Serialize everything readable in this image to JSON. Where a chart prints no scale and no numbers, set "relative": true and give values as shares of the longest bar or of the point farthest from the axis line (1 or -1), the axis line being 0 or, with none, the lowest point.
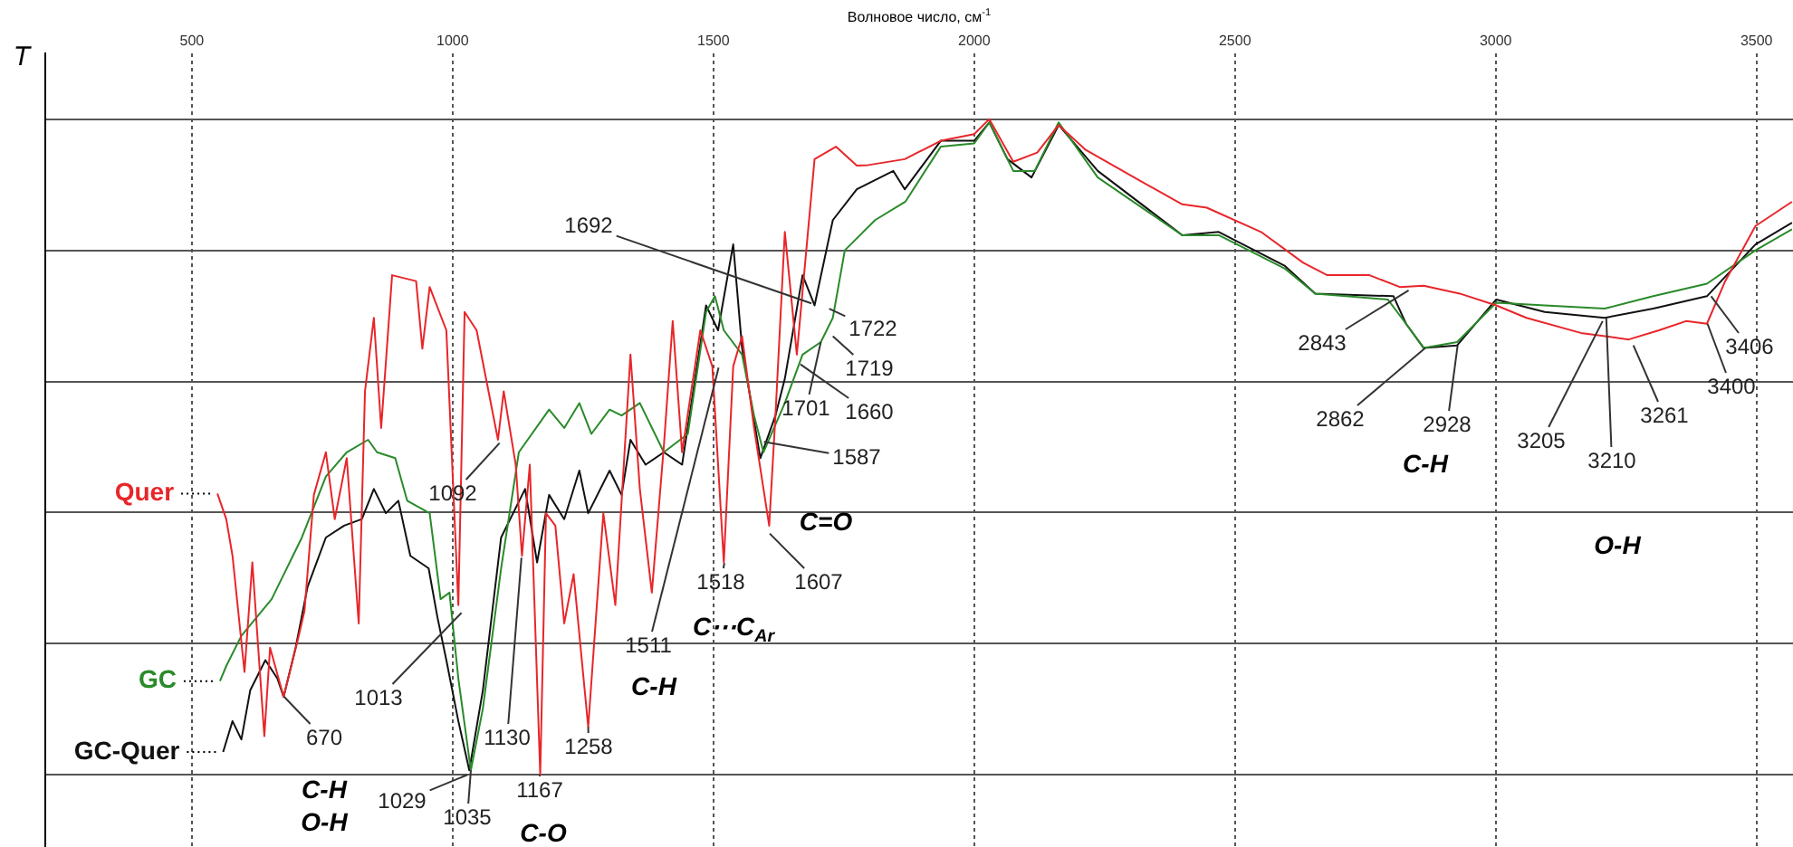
{
  "chart_data": {
    "type": "line",
    "relative": true,
    "xlabel": "Волновое число, см$^{-1}$",
    "ylabel": "T",
    "xlim": [
      219,
      3570
    ],
    "xticks": [
      500,
      1000,
      1500,
      2000,
      2500,
      3000,
      3500
    ],
    "grid": true,
    "legend": false,
    "marker": "none",
    "line_style": "solid",
    "series": [
      {
        "name": "Quer",
        "color": "#e8262a",
        "x": [
          549,
          566,
          578,
          601,
          616,
          639,
          650,
          676,
          705,
          716,
          734,
          757,
          774,
          797,
          820,
          832,
          849,
          863,
          884,
          930,
          942,
          956,
          988,
          1011,
          1023,
          1046,
          1087,
          1098,
          1121,
          1133,
          1148,
          1168,
          1179,
          1197,
          1214,
          1232,
          1260,
          1289,
          1312,
          1341,
          1359,
          1382,
          1405,
          1422,
          1440,
          1475,
          1498,
          1520,
          1538,
          1555,
          1578,
          1607,
          1619,
          1637,
          1660,
          1694,
          1735,
          1775,
          1797,
          1867,
          1936,
          2000,
          2029,
          2075,
          2121,
          2162,
          2214,
          2307,
          2399,
          2446,
          2550,
          2631,
          2677,
          2758,
          2816,
          2862,
          2931,
          3001,
          3059,
          3163,
          3255,
          3313,
          3365,
          3405,
          3440,
          3498,
          3568
        ],
        "values": [
          0.429,
          0.39,
          0.334,
          0.157,
          0.324,
          0.059,
          0.194,
          0.119,
          0.212,
          0.25,
          0.427,
          0.492,
          0.39,
          0.483,
          0.231,
          0.585,
          0.697,
          0.529,
          0.762,
          0.753,
          0.65,
          0.744,
          0.678,
          0.259,
          0.706,
          0.678,
          0.511,
          0.585,
          0.473,
          0.334,
          0.473,
          0,
          0.399,
          0.38,
          0.231,
          0.306,
          0.073,
          0.399,
          0.259,
          0.641,
          0.436,
          0.278,
          0.501,
          0.692,
          0.492,
          0.678,
          0.623,
          0.324,
          0.623,
          0.669,
          0.529,
          0.38,
          0.548,
          0.828,
          0.641,
          0.939,
          0.958,
          0.929,
          0.93,
          0.939,
          0.967,
          0.977,
          1,
          0.935,
          0.949,
          0.991,
          0.953,
          0.911,
          0.87,
          0.865,
          0.828,
          0.781,
          0.762,
          0.762,
          0.744,
          0.746,
          0.734,
          0.716,
          0.697,
          0.674,
          0.664,
          0.678,
          0.692,
          0.688,
          0.753,
          0.837,
          0.874
        ]
      },
      {
        "name": "GC",
        "color": "#2a8a2a",
        "x": [
          554,
          566,
          595,
          653,
          711,
          757,
          797,
          838,
          855,
          890,
          913,
          956,
          977,
          994,
          1011,
          1035,
          1058,
          1093,
          1127,
          1185,
          1214,
          1243,
          1266,
          1301,
          1324,
          1359,
          1405,
          1451,
          1486,
          1503,
          1520,
          1555,
          1578,
          1596,
          1637,
          1671,
          1706,
          1729,
          1752,
          1810,
          1868,
          1936,
          2000,
          2029,
          2075,
          2116,
          2162,
          2237,
          2399,
          2469,
          2596,
          2654,
          2793,
          2828,
          2862,
          2926,
          3001,
          3094,
          3209,
          3302,
          3405,
          3498,
          3568
        ],
        "values": [
          0.143,
          0.166,
          0.212,
          0.268,
          0.362,
          0.455,
          0.492,
          0.511,
          0.492,
          0.483,
          0.418,
          0.399,
          0.268,
          0.278,
          0.147,
          0.007,
          0.101,
          0.315,
          0.492,
          0.557,
          0.529,
          0.567,
          0.52,
          0.557,
          0.548,
          0.567,
          0.492,
          0.52,
          0.706,
          0.73,
          0.678,
          0.641,
          0.548,
          0.492,
          0.567,
          0.641,
          0.66,
          0.697,
          0.8,
          0.846,
          0.874,
          0.958,
          0.963,
          0.995,
          0.921,
          0.921,
          0.995,
          0.911,
          0.823,
          0.823,
          0.772,
          0.734,
          0.725,
          0.688,
          0.651,
          0.66,
          0.72,
          0.716,
          0.711,
          0.73,
          0.749,
          0.8,
          0.832
        ]
      },
      {
        "name": "GC-Quer",
        "color": "#111111",
        "x": [
          560,
          578,
          595,
          612,
          641,
          664,
          676,
          699,
          722,
          757,
          792,
          826,
          849,
          872,
          896,
          919,
          954,
          971,
          988,
          1011,
          1032,
          1058,
          1093,
          1139,
          1162,
          1185,
          1214,
          1243,
          1260,
          1301,
          1324,
          1341,
          1370,
          1405,
          1440,
          1463,
          1486,
          1509,
          1538,
          1555,
          1590,
          1619,
          1637,
          1671,
          1694,
          1729,
          1775,
          1845,
          1867,
          1936,
          2000,
          2029,
          2064,
          2110,
          2162,
          2237,
          2399,
          2469,
          2596,
          2654,
          2804,
          2828,
          2862,
          2926,
          3001,
          3094,
          3209,
          3302,
          3405,
          3498,
          3568
        ],
        "values": [
          0.035,
          0.082,
          0.054,
          0.129,
          0.175,
          0.147,
          0.119,
          0.194,
          0.287,
          0.362,
          0.38,
          0.39,
          0.436,
          0.399,
          0.418,
          0.334,
          0.315,
          0.24,
          0.175,
          0.082,
          0.007,
          0.129,
          0.362,
          0.436,
          0.324,
          0.427,
          0.39,
          0.464,
          0.399,
          0.464,
          0.427,
          0.511,
          0.473,
          0.492,
          0.473,
          0.594,
          0.716,
          0.678,
          0.809,
          0.651,
          0.483,
          0.548,
          0.604,
          0.762,
          0.716,
          0.846,
          0.893,
          0.921,
          0.893,
          0.967,
          0.967,
          0.995,
          0.939,
          0.911,
          0.991,
          0.921,
          0.823,
          0.828,
          0.776,
          0.734,
          0.73,
          0.688,
          0.651,
          0.655,
          0.725,
          0.706,
          0.697,
          0.711,
          0.73,
          0.809,
          0.842
        ]
      }
    ],
    "annotations": [
      {
        "text": "1692",
        "x": 1688,
        "y": 0.719
      },
      {
        "text": "1722",
        "x": 1722,
        "y": 0.711
      },
      {
        "text": "1719",
        "x": 1729,
        "y": 0.669
      },
      {
        "text": "1701",
        "x": 1706,
        "y": 0.66
      },
      {
        "text": "1660",
        "x": 1667,
        "y": 0.626
      },
      {
        "text": "1587",
        "x": 1597,
        "y": 0.508
      },
      {
        "text": "1607",
        "x": 1608,
        "y": 0.368
      },
      {
        "text": "1518",
        "x": 1521,
        "y": 0.323
      },
      {
        "text": "1511",
        "x": 1510,
        "y": 0.621
      },
      {
        "text": "1092",
        "x": 1090,
        "y": 0.506
      },
      {
        "text": "1013",
        "x": 1017,
        "y": 0.247
      },
      {
        "text": "1029",
        "x": 1028,
        "y": 0
      },
      {
        "text": "1035",
        "x": 1035,
        "y": 0.007
      },
      {
        "text": "1130",
        "x": 1132,
        "y": 0.331
      },
      {
        "text": "1167",
        "x": 1167,
        "y": 0
      },
      {
        "text": "1258",
        "x": 1260,
        "y": 0.073
      },
      {
        "text": "670",
        "x": 677,
        "y": 0.119
      },
      {
        "text": "2843",
        "x": 2833,
        "y": 0.739
      },
      {
        "text": "2862",
        "x": 2865,
        "y": 0.651
      },
      {
        "text": "2928",
        "x": 2927,
        "y": 0.655
      },
      {
        "text": "3205",
        "x": 3205,
        "y": 0.692
      },
      {
        "text": "3210",
        "x": 3212,
        "y": 0.697
      },
      {
        "text": "3261",
        "x": 3264,
        "y": 0.655
      },
      {
        "text": "3400",
        "x": 3406,
        "y": 0.688
      },
      {
        "text": "3406",
        "x": 3413,
        "y": 0.73
      },
      "C-H",
      "O-H",
      "C-O",
      "C-H",
      "C⋯C$_{Ar}$",
      "C=O",
      "C-H",
      "O-H"
    ]
  }
}
